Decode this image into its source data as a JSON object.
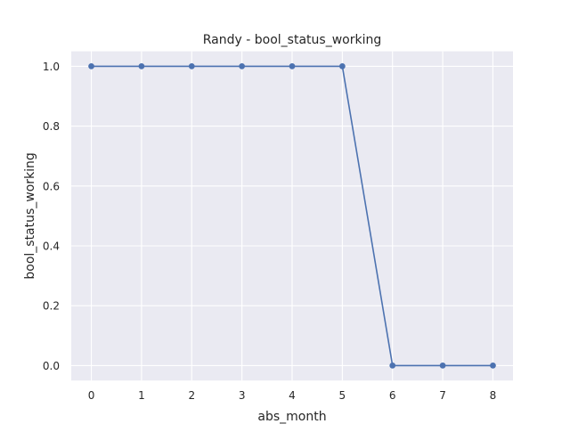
{
  "chart_data": {
    "type": "line",
    "title": "Randy - bool_status_working",
    "xlabel": "abs_month",
    "ylabel": "bool_status_working",
    "x": [
      0,
      1,
      2,
      3,
      4,
      5,
      6,
      7,
      8
    ],
    "series": [
      {
        "values": [
          1.0,
          1.0,
          1.0,
          1.0,
          1.0,
          1.0,
          0.0,
          0.0,
          0.0
        ]
      }
    ],
    "xlim": [
      -0.4,
      8.4
    ],
    "ylim": [
      -0.05,
      1.05
    ],
    "xticks": [
      "0",
      "1",
      "2",
      "3",
      "4",
      "5",
      "6",
      "7",
      "8"
    ],
    "yticks": [
      "0.0",
      "0.2",
      "0.4",
      "0.6",
      "0.8",
      "1.0"
    ],
    "grid": true,
    "colors": {
      "line": "#4c72b0",
      "plot_background": "#eaeaf2",
      "grid": "#ffffff"
    }
  }
}
